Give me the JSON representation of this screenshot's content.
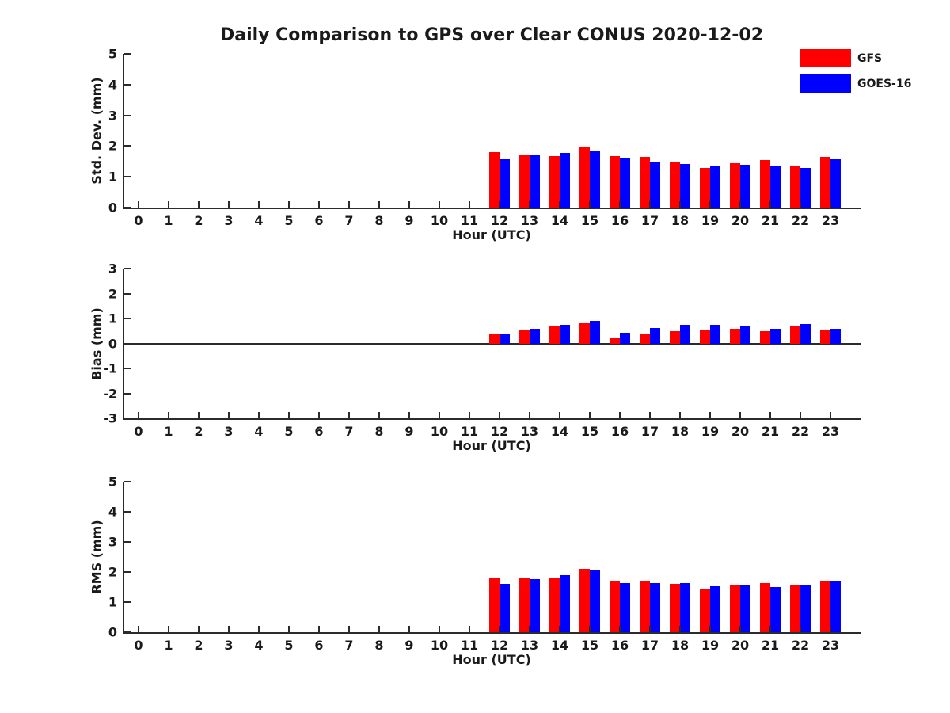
{
  "title": "Daily Comparison to GPS over Clear CONUS 2020-12-02",
  "legend": {
    "position": "top-right",
    "items": [
      {
        "label": "GFS",
        "color": "#ff0000"
      },
      {
        "label": "GOES-16",
        "color": "#0000ff"
      }
    ]
  },
  "colors": {
    "gfs": "#ff0000",
    "goes16": "#0000ff",
    "axis": "#2b2b2b",
    "text": "#1a1a1a",
    "background": "#ffffff"
  },
  "chart_data": [
    {
      "id": "stddev",
      "type": "bar",
      "title": "",
      "xlabel": "Hour (UTC)",
      "ylabel": "Std. Dev. (mm)",
      "ylim": [
        0,
        5
      ],
      "yticks": [
        0,
        1,
        2,
        3,
        4,
        5
      ],
      "xticks": [
        0,
        1,
        2,
        3,
        4,
        5,
        6,
        7,
        8,
        9,
        10,
        11,
        12,
        13,
        14,
        15,
        16,
        17,
        18,
        19,
        20,
        21,
        22,
        23
      ],
      "x": [
        12,
        13,
        14,
        15,
        16,
        17,
        18,
        19,
        20,
        21,
        22,
        23
      ],
      "grid": false,
      "zero_line": false,
      "series": [
        {
          "name": "GFS",
          "color": "#ff0000",
          "values": [
            1.8,
            1.71,
            1.68,
            1.97,
            1.68,
            1.66,
            1.49,
            1.3,
            1.45,
            1.54,
            1.36,
            1.64
          ]
        },
        {
          "name": "GOES-16",
          "color": "#0000ff",
          "values": [
            1.57,
            1.69,
            1.77,
            1.82,
            1.59,
            1.5,
            1.43,
            1.34,
            1.39,
            1.36,
            1.3,
            1.58
          ]
        }
      ]
    },
    {
      "id": "bias",
      "type": "bar",
      "title": "",
      "xlabel": "Hour (UTC)",
      "ylabel": "Bias (mm)",
      "ylim": [
        -3,
        3
      ],
      "yticks": [
        -3,
        -2,
        -1,
        0,
        1,
        2,
        3
      ],
      "xticks": [
        0,
        1,
        2,
        3,
        4,
        5,
        6,
        7,
        8,
        9,
        10,
        11,
        12,
        13,
        14,
        15,
        16,
        17,
        18,
        19,
        20,
        21,
        22,
        23
      ],
      "x": [
        12,
        13,
        14,
        15,
        16,
        17,
        18,
        19,
        20,
        21,
        22,
        23
      ],
      "grid": false,
      "zero_line": true,
      "series": [
        {
          "name": "GFS",
          "color": "#ff0000",
          "values": [
            0.4,
            0.53,
            0.69,
            0.81,
            0.21,
            0.42,
            0.52,
            0.57,
            0.59,
            0.5,
            0.72,
            0.53
          ]
        },
        {
          "name": "GOES-16",
          "color": "#0000ff",
          "values": [
            0.41,
            0.61,
            0.77,
            0.91,
            0.45,
            0.64,
            0.75,
            0.75,
            0.69,
            0.6,
            0.8,
            0.61
          ]
        }
      ]
    },
    {
      "id": "rms",
      "type": "bar",
      "title": "",
      "xlabel": "Hour (UTC)",
      "ylabel": "RMS (mm)",
      "ylim": [
        0,
        5
      ],
      "yticks": [
        0,
        1,
        2,
        3,
        4,
        5
      ],
      "xticks": [
        0,
        1,
        2,
        3,
        4,
        5,
        6,
        7,
        8,
        9,
        10,
        11,
        12,
        13,
        14,
        15,
        16,
        17,
        18,
        19,
        20,
        21,
        22,
        23
      ],
      "x": [
        12,
        13,
        14,
        15,
        16,
        17,
        18,
        19,
        20,
        21,
        22,
        23
      ],
      "grid": false,
      "zero_line": false,
      "series": [
        {
          "name": "GFS",
          "color": "#ff0000",
          "values": [
            1.8,
            1.8,
            1.79,
            2.1,
            1.7,
            1.7,
            1.61,
            1.45,
            1.56,
            1.62,
            1.55,
            1.72
          ]
        },
        {
          "name": "GOES-16",
          "color": "#0000ff",
          "values": [
            1.6,
            1.75,
            1.89,
            2.04,
            1.64,
            1.64,
            1.63,
            1.53,
            1.56,
            1.51,
            1.55,
            1.69
          ]
        }
      ]
    }
  ]
}
